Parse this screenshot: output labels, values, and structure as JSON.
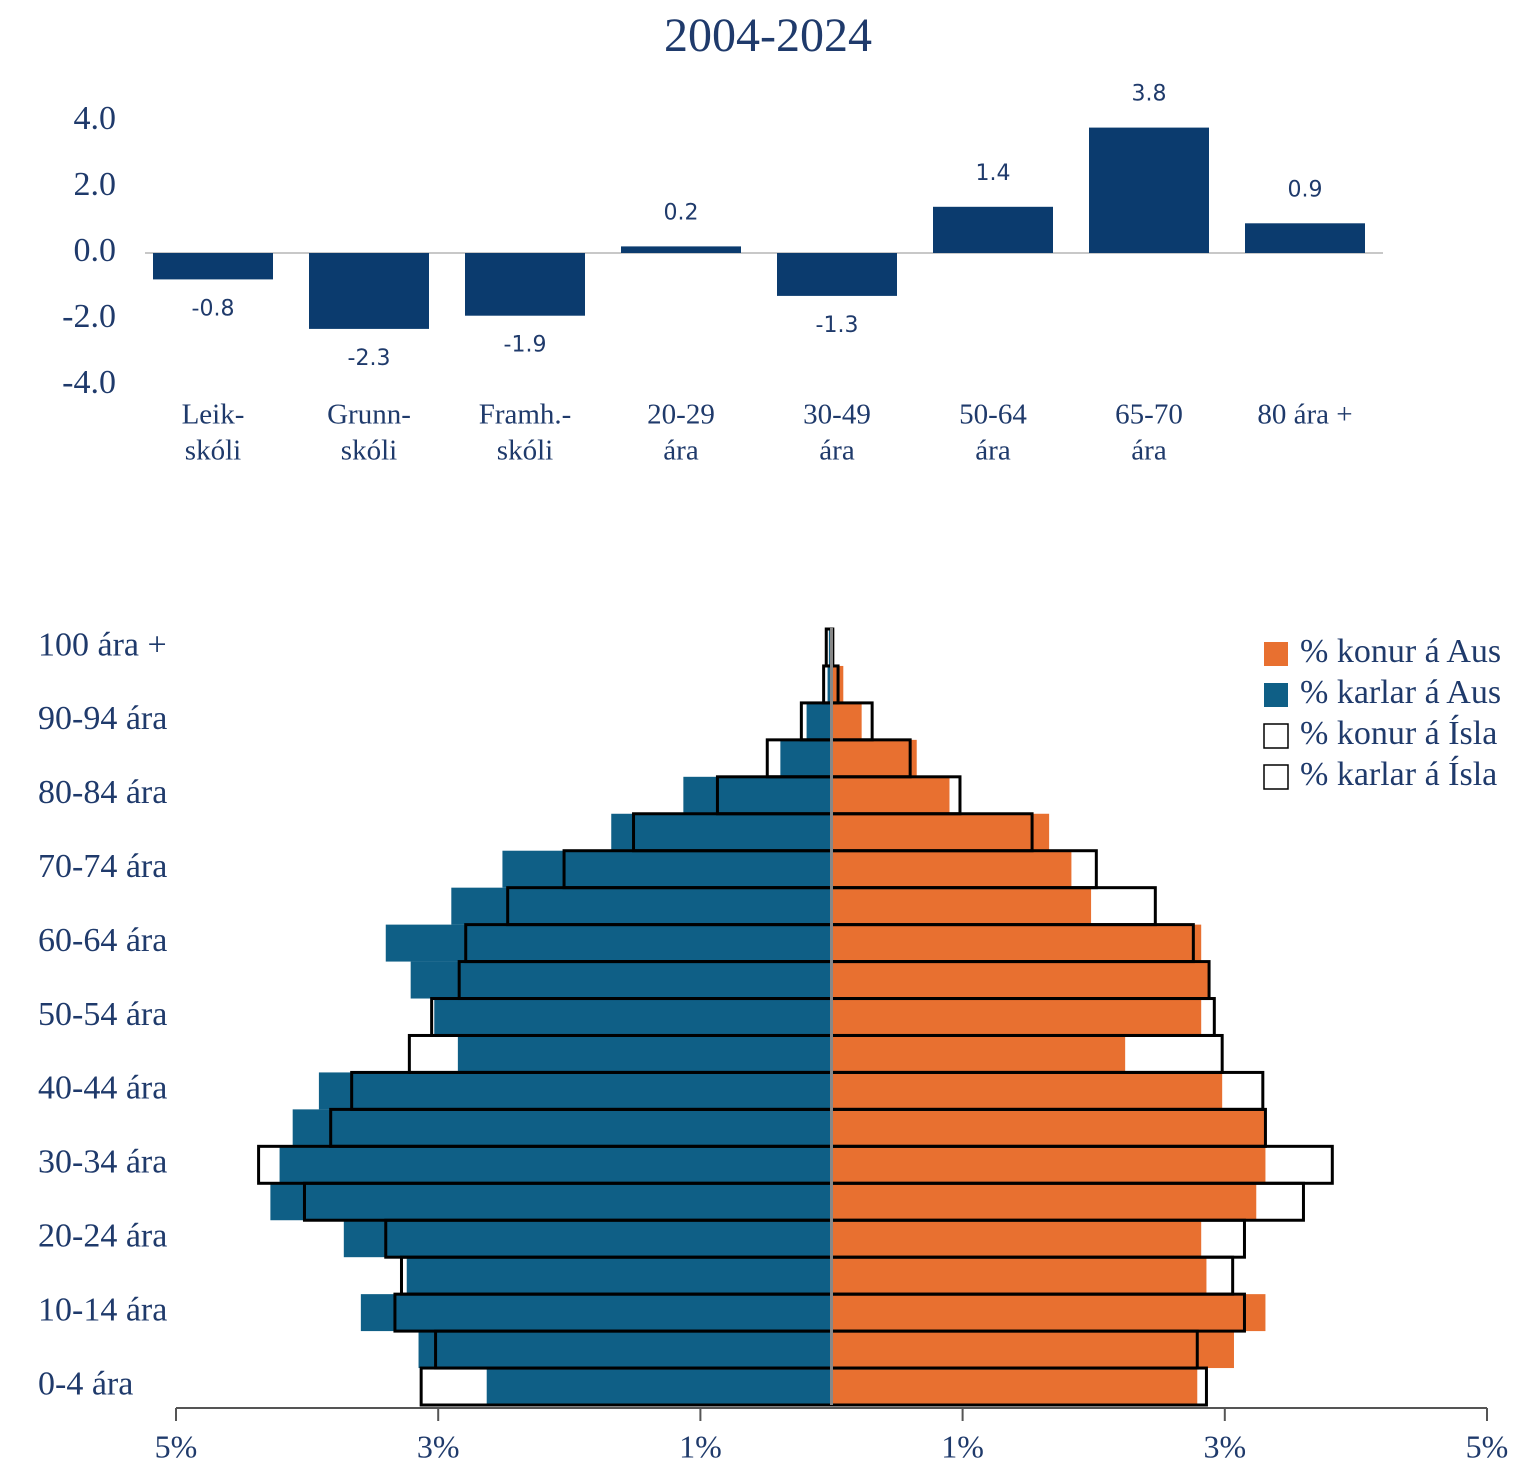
{
  "chart_data": [
    {
      "type": "bar",
      "title": "2004-2024",
      "categories": [
        [
          "Leik-",
          "skóli"
        ],
        [
          "Grunn-",
          "skóli"
        ],
        [
          "Framh.-",
          "skóli"
        ],
        [
          "20-29",
          "ára"
        ],
        [
          "30-49",
          "ára"
        ],
        [
          "50-64",
          "ára"
        ],
        [
          "65-70",
          "ára"
        ],
        [
          "80 ára +"
        ]
      ],
      "values": [
        -0.8,
        -2.3,
        -1.9,
        0.2,
        -1.3,
        1.4,
        3.8,
        0.9
      ],
      "color": "#0b3b6e",
      "ylim": [
        -4,
        4
      ],
      "yticks": [
        {
          "value": 4,
          "label": "4.0"
        },
        {
          "value": 2,
          "label": "2.0"
        },
        {
          "value": 0,
          "label": "0.0"
        },
        {
          "value": -2,
          "label": "-2.0"
        },
        {
          "value": -4,
          "label": "-4.0"
        }
      ]
    },
    {
      "type": "pyramid",
      "categories": [
        "0-4 ára",
        null,
        "10-14 ára",
        null,
        "20-24 ára",
        null,
        "30-34 ára",
        null,
        "40-44 ára",
        null,
        "50-54 ára",
        null,
        "60-64 ára",
        null,
        "70-74 ára",
        null,
        "80-84 ára",
        null,
        "90-94 ára",
        null,
        "100 ára +"
      ],
      "series": [
        {
          "name": "% konur á Aus",
          "color": "#e87030",
          "style": "fill",
          "values": [
            2.79,
            3.07,
            3.31,
            2.86,
            2.82,
            3.24,
            3.31,
            3.31,
            2.98,
            2.24,
            2.82,
            2.89,
            2.82,
            1.98,
            1.83,
            1.66,
            0.9,
            0.65,
            0.23,
            0.09,
            0.02
          ]
        },
        {
          "name": "% karlar á Aus",
          "color": "#0f5f86",
          "style": "fill",
          "values": [
            -2.63,
            -3.15,
            -3.59,
            -3.24,
            -3.72,
            -4.28,
            -4.21,
            -4.11,
            -3.91,
            -2.85,
            -3.03,
            -3.21,
            -3.4,
            -2.9,
            -2.51,
            -1.68,
            -1.13,
            -0.39,
            -0.19,
            -0.03,
            -0.02
          ]
        },
        {
          "name": "% konur á Ísla",
          "color": "#000000",
          "style": "outline",
          "values": [
            2.86,
            2.79,
            3.15,
            3.06,
            3.15,
            3.6,
            3.82,
            3.31,
            3.29,
            2.98,
            2.92,
            2.88,
            2.76,
            2.47,
            2.02,
            1.53,
            0.98,
            0.6,
            0.31,
            0.05,
            0.01
          ]
        },
        {
          "name": "% karlar á Ísla",
          "color": "#000000",
          "style": "outline",
          "values": [
            -3.13,
            -3.02,
            -3.33,
            -3.28,
            -3.4,
            -4.02,
            -4.37,
            -3.82,
            -3.66,
            -3.22,
            -3.05,
            -2.84,
            -2.79,
            -2.47,
            -2.04,
            -1.51,
            -0.87,
            -0.49,
            -0.23,
            -0.06,
            -0.04
          ]
        }
      ],
      "legend_colors": {
        "_": null
      },
      "xlim": [
        -5,
        5
      ],
      "xticks": [
        {
          "value": -5,
          "label": "5%"
        },
        {
          "value": -3,
          "label": "3%"
        },
        {
          "value": -1,
          "label": "1%"
        },
        {
          "value": 1,
          "label": "1%"
        },
        {
          "value": 3,
          "label": "3%"
        },
        {
          "value": 5,
          "label": "5%"
        }
      ]
    }
  ]
}
